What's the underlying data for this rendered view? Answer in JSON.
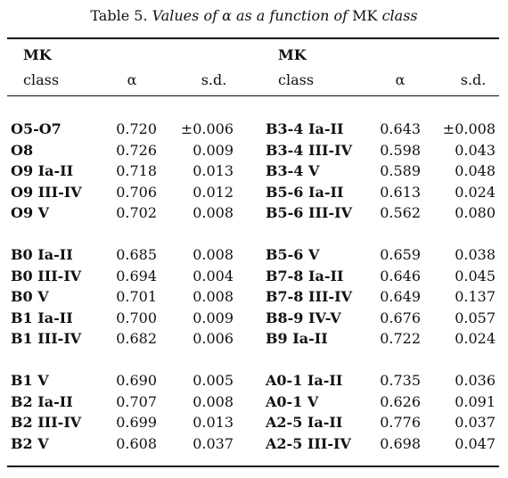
{
  "title": {
    "label": "Table 5.",
    "text": "Values of α as a function of",
    "mk": "MK",
    "end": "class"
  },
  "header": [
    {
      "mk": "MK",
      "class": "class",
      "alpha": "α",
      "sd": "s.d."
    },
    {
      "mk": "MK",
      "class": "class",
      "alpha": "α",
      "sd": "s.d."
    }
  ],
  "groups": [
    [
      [
        "O5-O7",
        "0.720",
        "±0.006",
        "B3-4 Ia-II",
        "0.643",
        "±0.008"
      ],
      [
        "O8",
        "0.726",
        "0.009",
        "B3-4 III-IV",
        "0.598",
        "0.043"
      ],
      [
        "O9 Ia-II",
        "0.718",
        "0.013",
        "B3-4 V",
        "0.589",
        "0.048"
      ],
      [
        "O9 III-IV",
        "0.706",
        "0.012",
        "B5-6 Ia-II",
        "0.613",
        "0.024"
      ],
      [
        "O9 V",
        "0.702",
        "0.008",
        "B5-6 III-IV",
        "0.562",
        "0.080"
      ]
    ],
    [
      [
        "B0 Ia-II",
        "0.685",
        "0.008",
        "B5-6 V",
        "0.659",
        "0.038"
      ],
      [
        "B0 III-IV",
        "0.694",
        "0.004",
        "B7-8 Ia-II",
        "0.646",
        "0.045"
      ],
      [
        "B0 V",
        "0.701",
        "0.008",
        "B7-8 III-IV",
        "0.649",
        "0.137"
      ],
      [
        "B1 Ia-II",
        "0.700",
        "0.009",
        "B8-9 IV-V",
        "0.676",
        "0.057"
      ],
      [
        "B1 III-IV",
        "0.682",
        "0.006",
        "B9 Ia-II",
        "0.722",
        "0.024"
      ]
    ],
    [
      [
        "B1 V",
        "0.690",
        "0.005",
        "A0-1 Ia-II",
        "0.735",
        "0.036"
      ],
      [
        "B2 Ia-II",
        "0.707",
        "0.008",
        "A0-1 V",
        "0.626",
        "0.091"
      ],
      [
        "B2 III-IV",
        "0.699",
        "0.013",
        "A2-5 Ia-II",
        "0.776",
        "0.037"
      ],
      [
        "B2 V",
        "0.608",
        "0.037",
        "A2-5 III-IV",
        "0.698",
        "0.047"
      ]
    ]
  ]
}
